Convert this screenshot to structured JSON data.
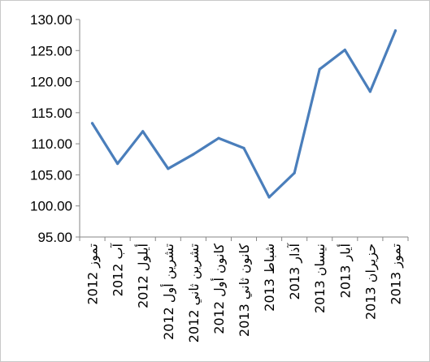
{
  "chart_data": {
    "type": "line",
    "title": "",
    "xlabel": "",
    "ylabel": "",
    "ylim": [
      95,
      130
    ],
    "y_ticks": [
      "95.00",
      "100.00",
      "105.00",
      "110.00",
      "115.00",
      "120.00",
      "125.00",
      "130.00"
    ],
    "grid": false,
    "legend": "none",
    "categories": [
      "تموز 2012",
      "آب 2012",
      "أيلول 2012",
      "تشرين أول 2012",
      "تشرين ثاني 2012",
      "كانون أول 2012",
      "كانون ثاني 2013",
      "شباط 2013",
      "آذار 2013",
      "نيسان 2013",
      "أيار 2013",
      "حزيران 2013",
      "تموز 2013"
    ],
    "series": [
      {
        "color": "#4a7ebb",
        "values": [
          113.3,
          106.8,
          112.0,
          106.0,
          108.3,
          110.9,
          109.3,
          101.4,
          105.3,
          122.0,
          125.1,
          118.4,
          128.2
        ]
      }
    ]
  }
}
